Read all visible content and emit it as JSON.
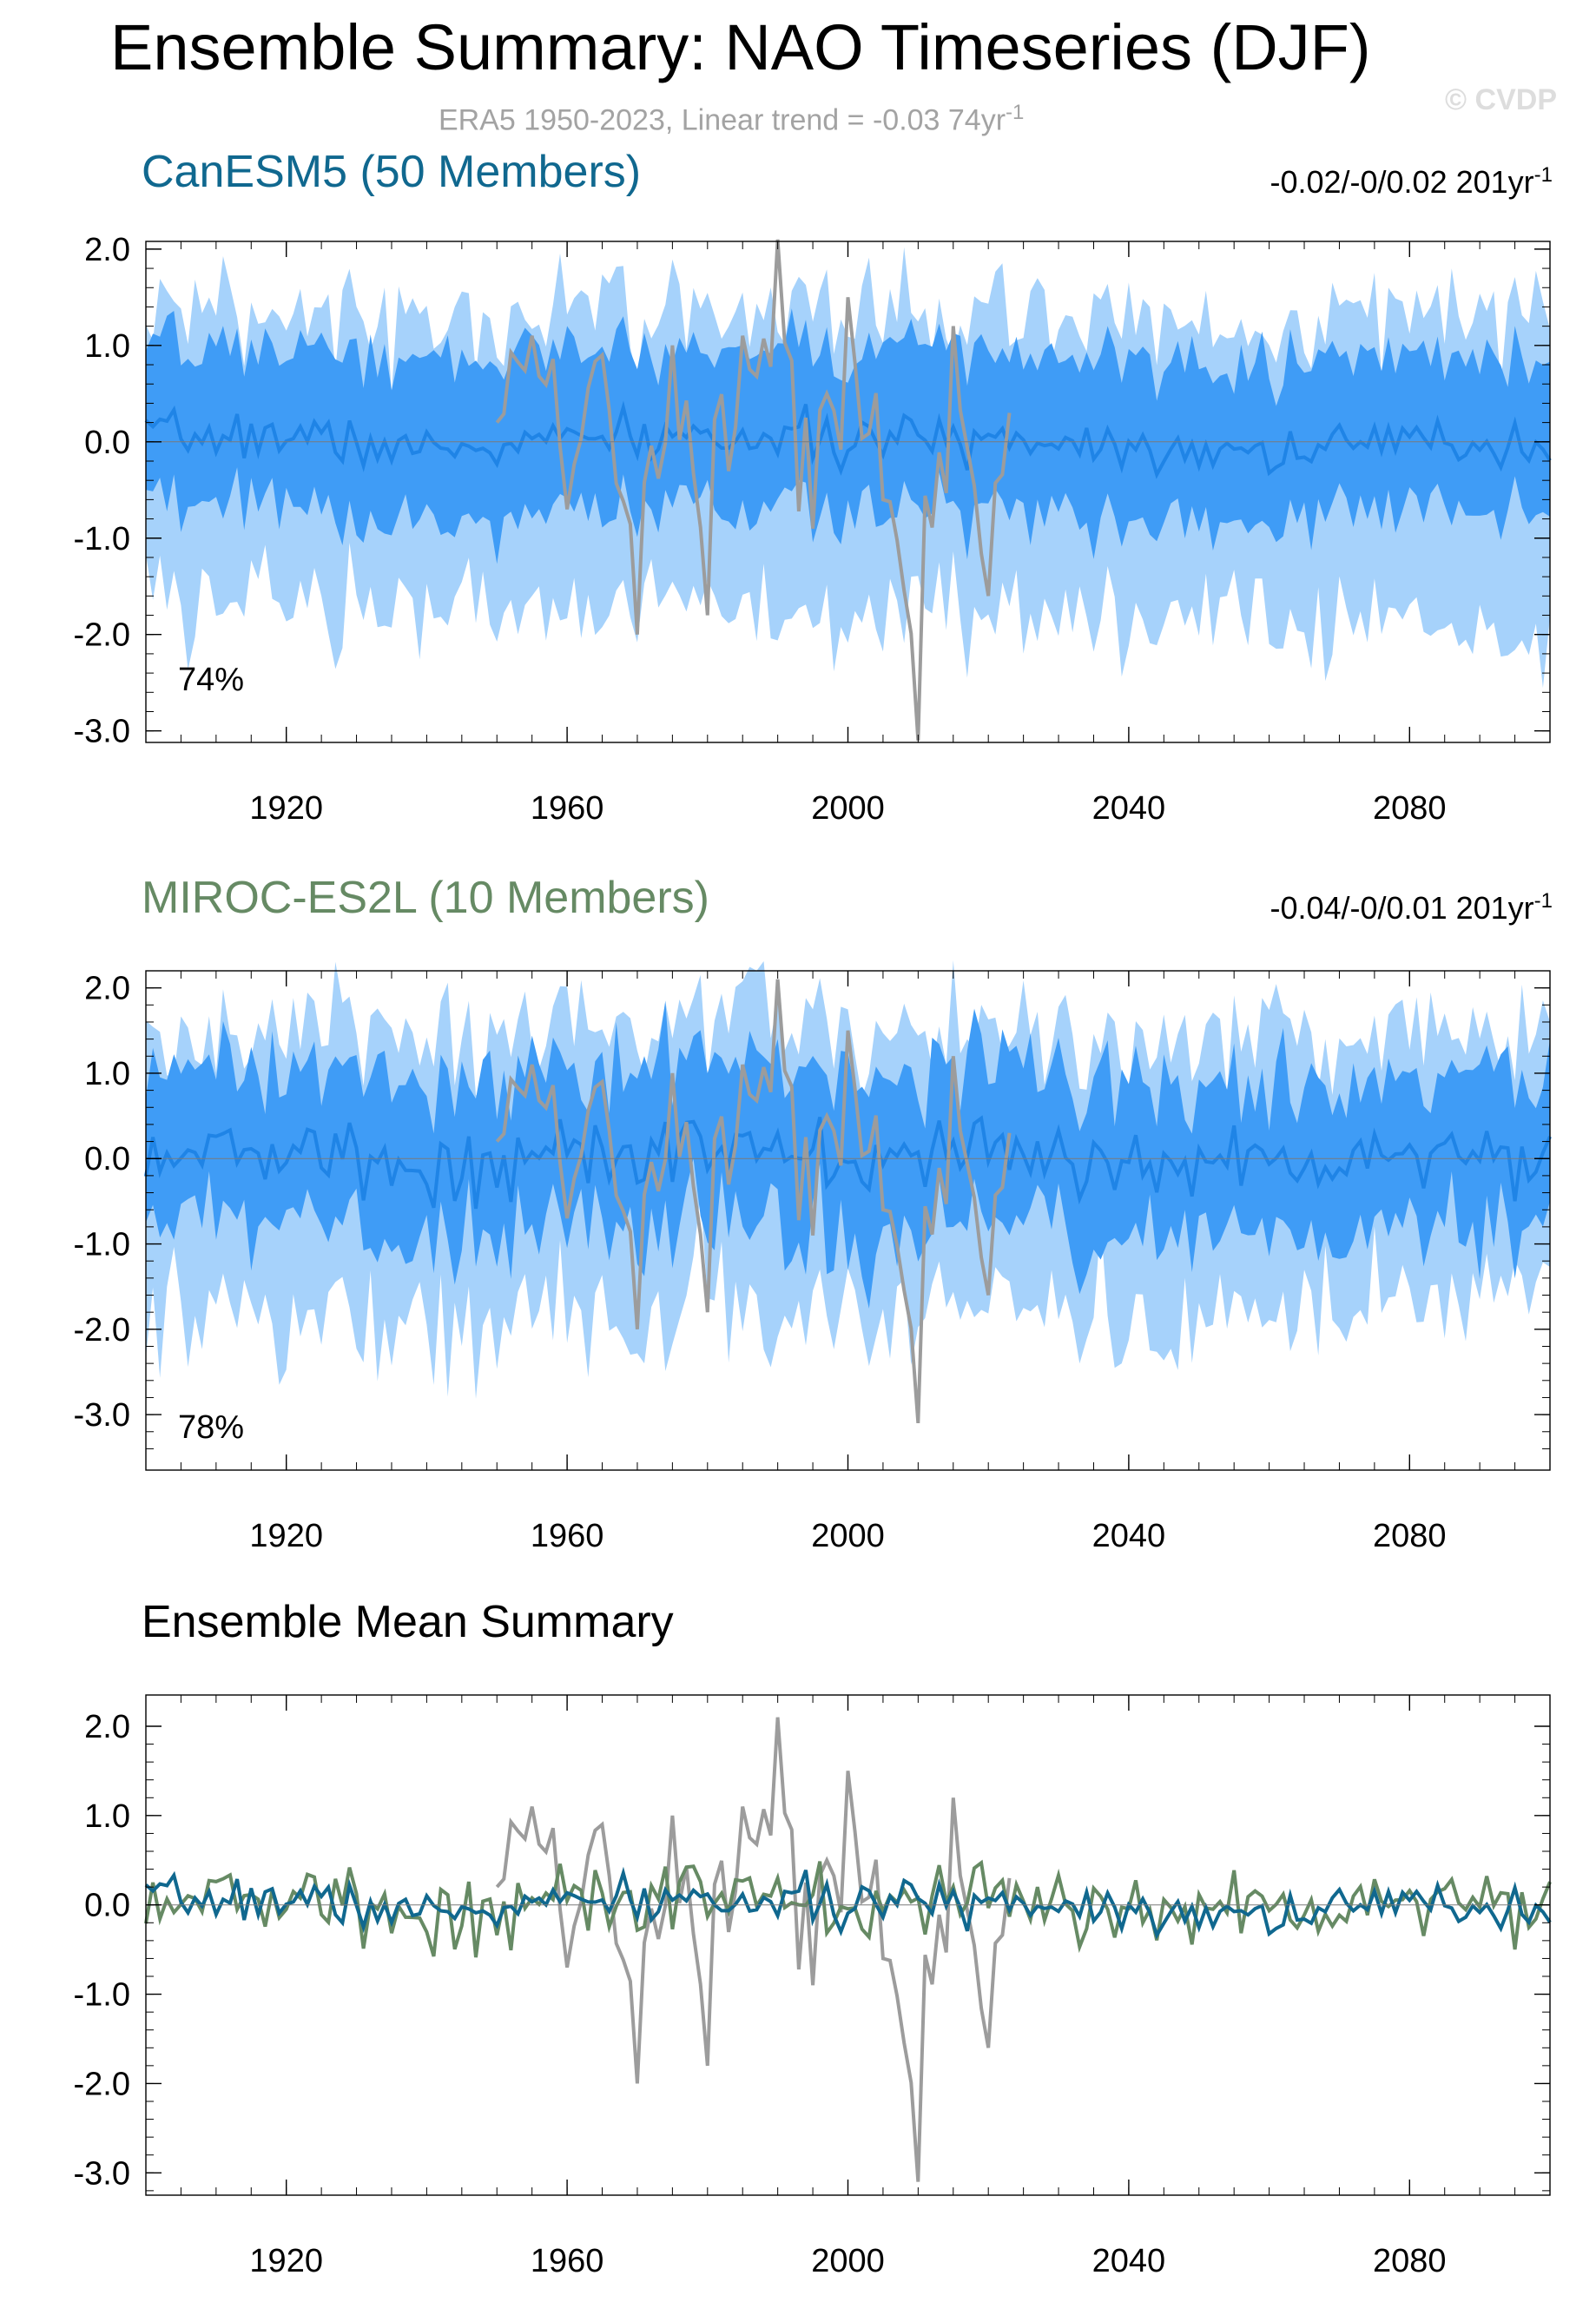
{
  "main_title": "Ensemble Summary: NAO Timeseries (DJF)",
  "obs_subtitle": {
    "text": "ERA5 1950-2023, Linear trend = -0.03 74yr",
    "sup": "-1"
  },
  "watermark": "© CVDP",
  "colors": {
    "obs": "#9c9c9c",
    "band_outer": "#a6d2fb",
    "band_inner": "#3f9cf6",
    "member_mean": "#1f84e6",
    "canesm5": "#10688f",
    "miroc": "#668a64",
    "axis": "#000000"
  },
  "panels": [
    {
      "title": "CanESM5 (50 Members)",
      "title_color": "#10688f",
      "trend": {
        "text": "-0.02/-0/0.02 201yr",
        "sup": "-1"
      },
      "percent": "74%"
    },
    {
      "title": "MIROC-ES2L (10 Members)",
      "title_color": "#668a64",
      "trend": {
        "text": "-0.04/-0/0.01 201yr",
        "sup": "-1"
      },
      "percent": "78%"
    },
    {
      "title": "Ensemble Mean Summary",
      "title_color": "#000000"
    }
  ],
  "chart_data": [
    {
      "type": "area",
      "title": "CanESM5 (50 Members)",
      "xlim": [
        1900,
        2100
      ],
      "ylim": [
        -3.0,
        2.0
      ],
      "xticks": [
        "1920",
        "1960",
        "2000",
        "2040",
        "2080"
      ],
      "yticks": [
        "2.0",
        "1.0",
        "0.0",
        "-1.0",
        "-2.0",
        "-3.0"
      ],
      "annotation": "74%",
      "series": [
        {
          "name": "ERA5",
          "x": [
            1950,
            1955,
            1960,
            1965,
            1970,
            1975,
            1980,
            1985,
            1990,
            1995,
            2000,
            2005,
            2010,
            2015,
            2020,
            2023
          ],
          "values": [
            0.2,
            1.1,
            -0.7,
            0.9,
            -2.0,
            1.0,
            -1.8,
            1.1,
            2.1,
            -0.9,
            1.5,
            -0.6,
            -3.1,
            1.2,
            -1.6,
            0.3
          ]
        },
        {
          "x": [
            1900,
            1920,
            1940,
            1960,
            1980,
            2000,
            2020,
            2040,
            2060,
            2080,
            2100
          ],
          "values": [
            0.1,
            0.15,
            -0.2,
            0.05,
            0.1,
            0.0,
            0.1,
            -0.05,
            -0.2,
            0.0,
            -0.05
          ]
        },
        {
          "x": [
            1900,
            1950,
            2000,
            2050,
            2100
          ],
          "upper": [
            0.9,
            0.9,
            0.95,
            0.9,
            0.9
          ],
          "lower": [
            -0.7,
            -0.75,
            -0.75,
            -0.7,
            -0.7
          ]
        },
        {
          "x": [
            1900,
            1950,
            2000,
            2050,
            2100
          ],
          "upper": [
            1.3,
            1.3,
            1.35,
            1.3,
            1.5
          ],
          "lower": [
            -1.7,
            -1.75,
            -1.8,
            -1.7,
            -2.0
          ]
        }
      ]
    },
    {
      "type": "area",
      "title": "MIROC-ES2L (10 Members)",
      "xlim": [
        1900,
        2100
      ],
      "ylim": [
        -3.0,
        2.0
      ],
      "xticks": [
        "1920",
        "1960",
        "2000",
        "2040",
        "2080"
      ],
      "yticks": [
        "2.0",
        "1.0",
        "0.0",
        "-1.0",
        "-2.0",
        "-3.0"
      ],
      "annotation": "78%",
      "series": [
        {
          "name": "ERA5",
          "x": [
            1950,
            1955,
            1960,
            1965,
            1970,
            1975,
            1980,
            1985,
            1990,
            1995,
            2000,
            2005,
            2010,
            2015,
            2020,
            2023
          ],
          "values": [
            0.2,
            1.1,
            -0.7,
            0.9,
            -2.0,
            1.0,
            -1.8,
            1.1,
            2.1,
            -0.9,
            1.5,
            -0.6,
            -3.1,
            1.2,
            -1.6,
            0.3
          ]
        },
        {
          "x": [
            1900,
            1920,
            1940,
            1960,
            1980,
            2000,
            2020,
            2040,
            2060,
            2080,
            2100
          ],
          "values": [
            0.3,
            0.1,
            -0.3,
            0.2,
            0.1,
            -0.1,
            0.2,
            -0.2,
            0.0,
            0.2,
            0.1
          ]
        },
        {
          "x": [
            1900,
            1950,
            2000,
            2050,
            2100
          ],
          "upper": [
            0.9,
            1.0,
            1.0,
            0.95,
            0.9
          ],
          "lower": [
            -0.8,
            -0.8,
            -0.9,
            -0.8,
            -0.8
          ]
        },
        {
          "x": [
            1900,
            1950,
            2000,
            2050,
            2100
          ],
          "upper": [
            1.4,
            1.5,
            1.5,
            1.4,
            1.3
          ],
          "lower": [
            -1.8,
            -1.9,
            -1.9,
            -1.8,
            -1.7
          ]
        }
      ]
    },
    {
      "type": "line",
      "title": "Ensemble Mean Summary",
      "xlim": [
        1900,
        2100
      ],
      "ylim": [
        -3.0,
        2.0
      ],
      "xticks": [
        "1920",
        "1960",
        "2000",
        "2040",
        "2080"
      ],
      "yticks": [
        "2.0",
        "1.0",
        "0.0",
        "-1.0",
        "-2.0",
        "-3.0"
      ],
      "series": [
        {
          "name": "ERA5",
          "x": [
            1950,
            1955,
            1960,
            1965,
            1970,
            1975,
            1980,
            1985,
            1990,
            1995,
            2000,
            2005,
            2010,
            2015,
            2020,
            2023
          ],
          "values": [
            0.2,
            1.1,
            -0.7,
            0.9,
            -2.0,
            1.0,
            -1.8,
            1.1,
            2.1,
            -0.9,
            1.5,
            -0.6,
            -3.1,
            1.2,
            -1.6,
            0.3
          ]
        },
        {
          "name": "CanESM5 (50 Members)",
          "x": [
            1900,
            1920,
            1940,
            1960,
            1980,
            2000,
            2020,
            2040,
            2060,
            2080,
            2100
          ],
          "values": [
            0.1,
            0.15,
            -0.2,
            0.05,
            0.1,
            0.0,
            0.1,
            -0.05,
            -0.2,
            0.0,
            -0.05
          ]
        },
        {
          "name": "MIROC-ES2L (10 Members)",
          "x": [
            1900,
            1920,
            1940,
            1960,
            1980,
            2000,
            2020,
            2040,
            2060,
            2080,
            2100
          ],
          "values": [
            0.3,
            0.1,
            -0.3,
            0.2,
            0.1,
            -0.1,
            0.2,
            -0.2,
            0.0,
            0.2,
            0.1
          ]
        }
      ]
    }
  ]
}
